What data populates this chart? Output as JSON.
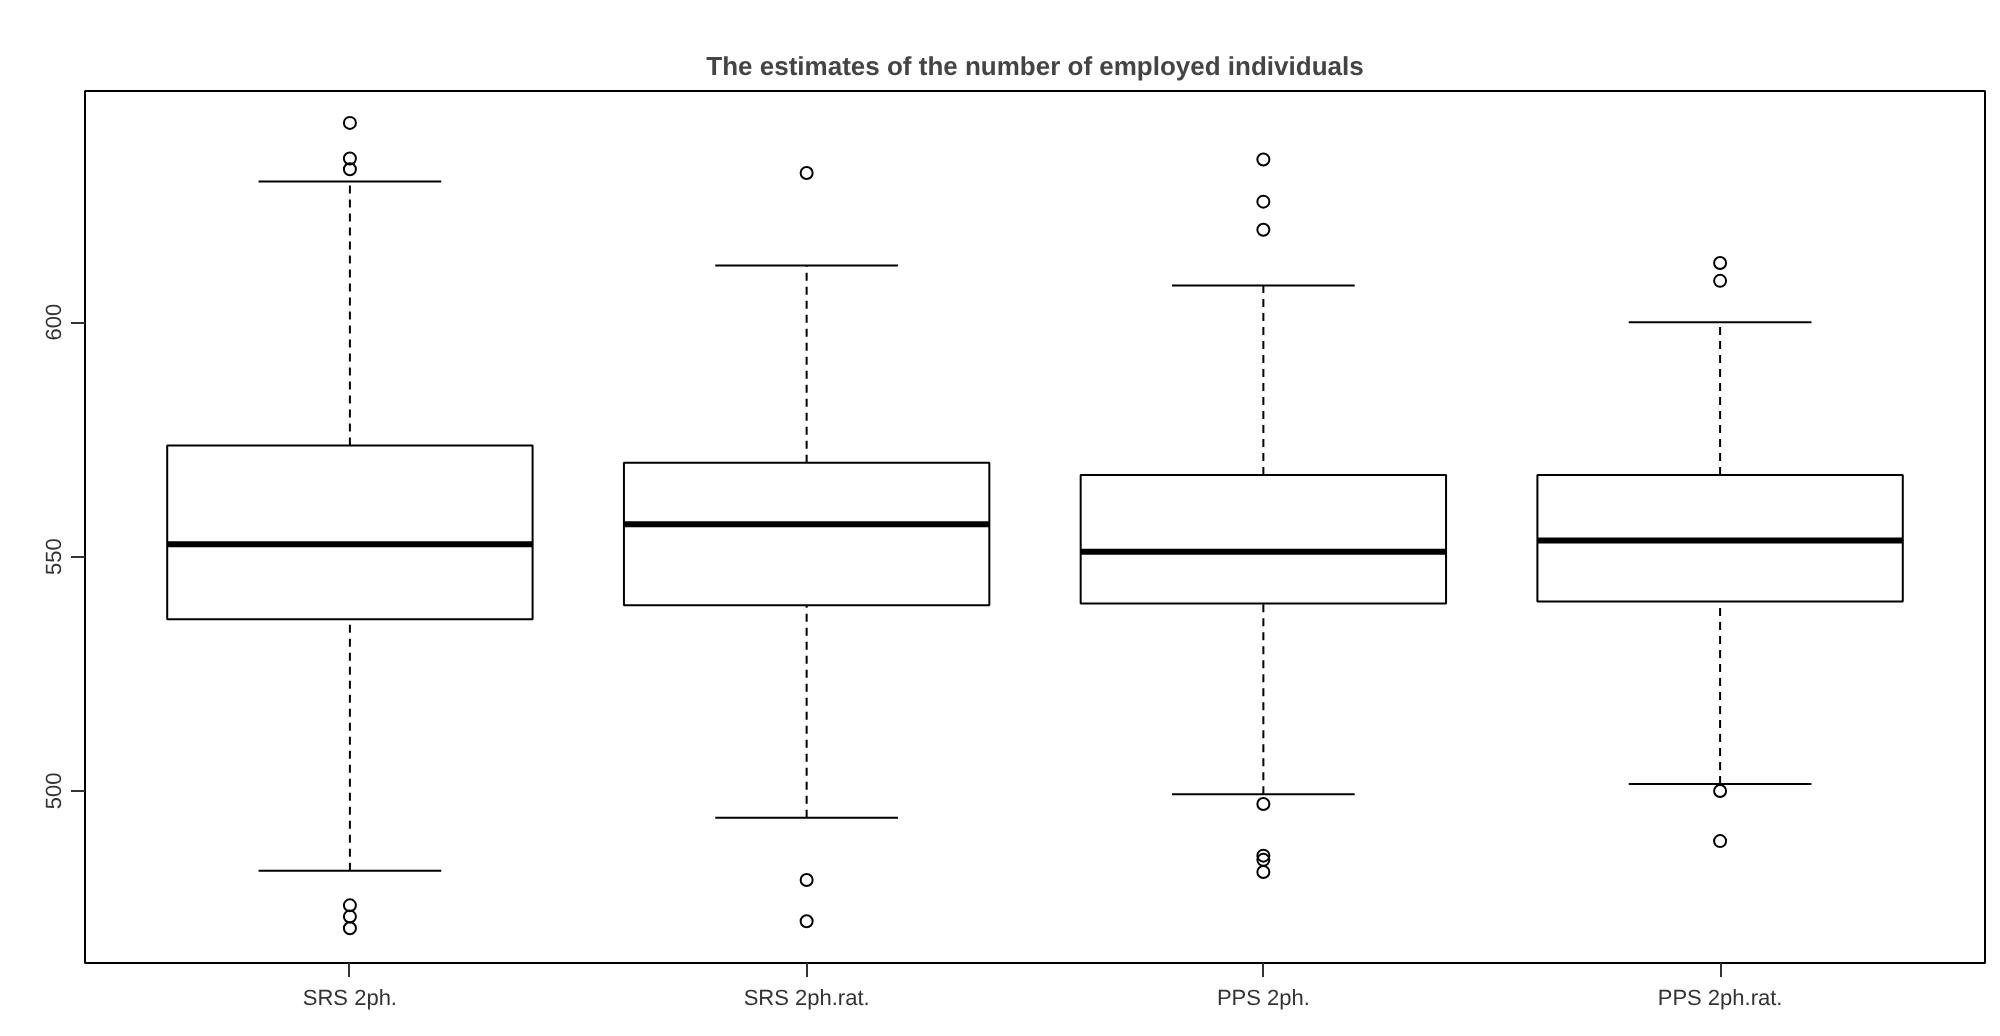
{
  "chart_data": {
    "type": "box",
    "title": "The estimates of the number of employed individuals",
    "categories": [
      "SRS 2ph.",
      "SRS 2ph.rat.",
      "PPS 2ph.",
      "PPS 2ph.rat."
    ],
    "boxes": [
      {
        "low": 483.0,
        "q1": 536.6,
        "median": 552.6,
        "q3": 573.7,
        "high": 630.0,
        "outliers": [
          642.5,
          634.9,
          632.6,
          475.6,
          473.2,
          470.7
        ]
      },
      {
        "low": 494.3,
        "q1": 539.6,
        "median": 556.9,
        "q3": 570.0,
        "high": 612.1,
        "outliers": [
          631.8,
          481.0,
          472.2
        ]
      },
      {
        "low": 499.3,
        "q1": 540.0,
        "median": 551.0,
        "q3": 567.4,
        "high": 607.8,
        "outliers": [
          634.7,
          625.7,
          619.7,
          497.2,
          486.2,
          485.3,
          482.7
        ]
      },
      {
        "low": 501.5,
        "q1": 540.4,
        "median": 553.4,
        "q3": 567.4,
        "high": 600.0,
        "outliers": [
          612.6,
          608.8,
          500.0,
          489.3
        ]
      }
    ],
    "ylim": [
      463.3,
      649.3
    ],
    "yticks": [
      500,
      550,
      600
    ],
    "grid": false,
    "marker": "circle"
  }
}
